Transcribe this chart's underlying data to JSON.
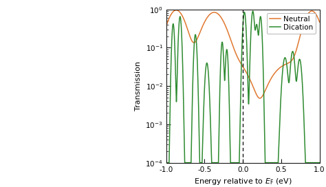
{
  "xlabel": "Energy relative to $E_\\mathrm{F}$ (eV)",
  "ylabel": "Transmission",
  "xlim": [
    -1.0,
    1.0
  ],
  "ylim_log_min": -4,
  "ylim_log_max": 0,
  "xticks": [
    -1.0,
    -0.5,
    0.0,
    0.5,
    1.0
  ],
  "xtick_labels": [
    "-1.0",
    "-0.5",
    "0.0",
    "0.5",
    "1.0"
  ],
  "vline_x": 0.0,
  "neutral_color": "#E07830",
  "dication_color": "#2E8B30",
  "legend_neutral": "Neutral",
  "legend_dication": "Dication",
  "background_color": "#ffffff",
  "figwidth": 4.74,
  "figheight": 2.72,
  "dpi": 100
}
